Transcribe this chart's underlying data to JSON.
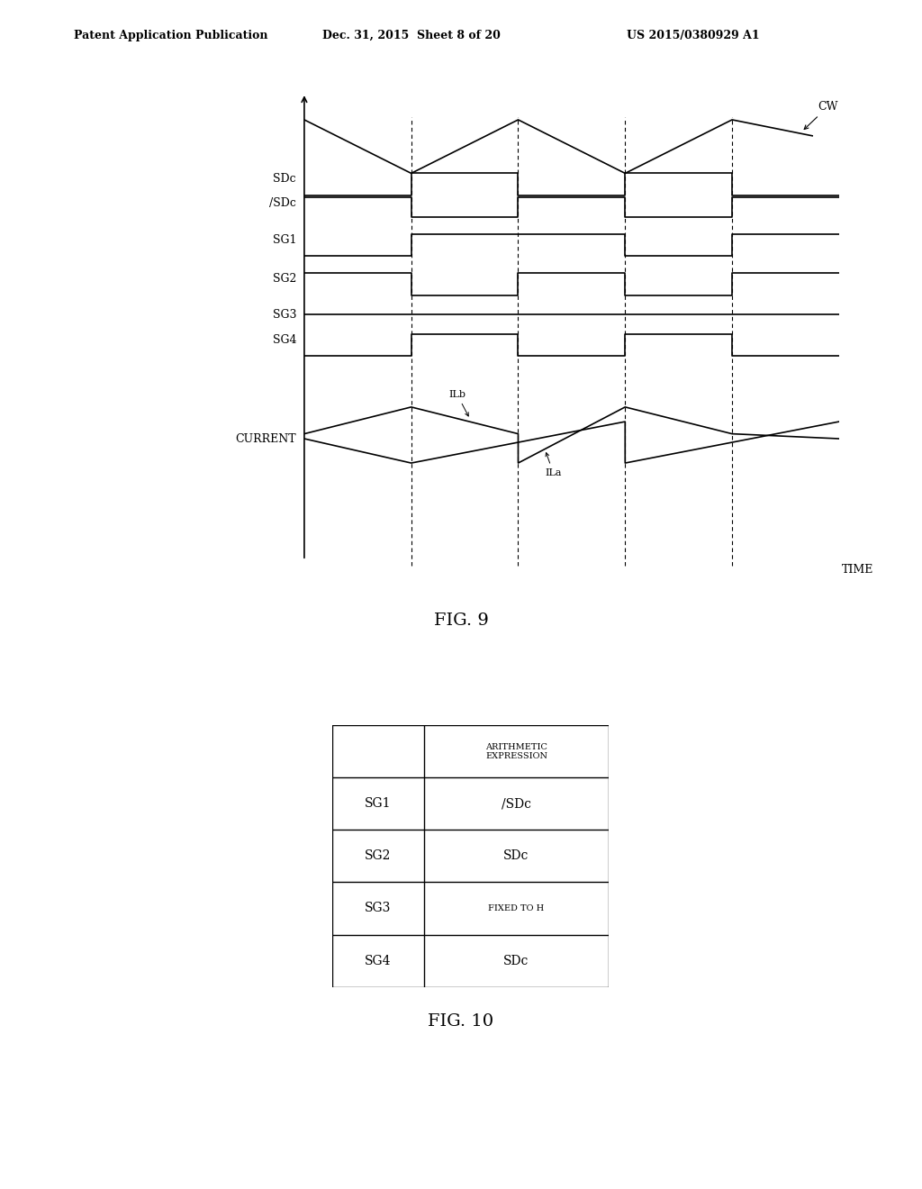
{
  "header_left": "Patent Application Publication",
  "header_mid": "Dec. 31, 2015  Sheet 8 of 20",
  "header_right": "US 2015/0380929 A1",
  "fig9_title": "FIG. 9",
  "fig10_title": "FIG. 10",
  "table_header_col2": "ARITHMETIC\nEXPRESSION",
  "table_rows": [
    [
      "SG1",
      "/SDc"
    ],
    [
      "SG2",
      "SDc"
    ],
    [
      "SG3",
      "FIXED TO H"
    ],
    [
      "SG4",
      "SDc"
    ]
  ],
  "cw_label": "CW",
  "time_label": "TIME",
  "ilb_label": "ILb",
  "ila_label": "ILa",
  "bg_color": "#ffffff",
  "line_color": "#000000"
}
